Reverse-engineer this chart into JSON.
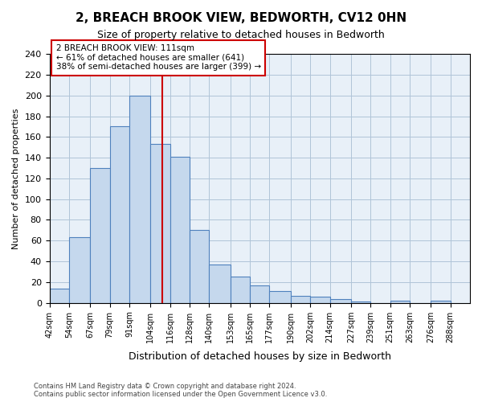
{
  "title": "2, BREACH BROOK VIEW, BEDWORTH, CV12 0HN",
  "subtitle": "Size of property relative to detached houses in Bedworth",
  "xlabel": "Distribution of detached houses by size in Bedworth",
  "ylabel": "Number of detached properties",
  "bin_labels": [
    "42sqm",
    "54sqm",
    "67sqm",
    "79sqm",
    "91sqm",
    "104sqm",
    "116sqm",
    "128sqm",
    "140sqm",
    "153sqm",
    "165sqm",
    "177sqm",
    "190sqm",
    "202sqm",
    "214sqm",
    "227sqm",
    "239sqm",
    "251sqm",
    "263sqm",
    "276sqm",
    "288sqm"
  ],
  "bin_edges": [
    42,
    54,
    67,
    79,
    91,
    104,
    116,
    128,
    140,
    153,
    165,
    177,
    190,
    202,
    214,
    227,
    239,
    251,
    263,
    276,
    288
  ],
  "bar_heights": [
    14,
    63,
    130,
    170,
    200,
    153,
    141,
    70,
    37,
    25,
    17,
    11,
    7,
    6,
    4,
    1,
    0,
    2,
    0,
    2
  ],
  "bar_color": "#c5d8ed",
  "bar_edge_color": "#4f81bd",
  "property_size": 111,
  "vline_color": "#cc0000",
  "annotation_text": "2 BREACH BROOK VIEW: 111sqm\n← 61% of detached houses are smaller (641)\n38% of semi-detached houses are larger (399) →",
  "annotation_box_color": "#ffffff",
  "annotation_box_edge_color": "#cc0000",
  "ylim": [
    0,
    240
  ],
  "yticks": [
    0,
    20,
    40,
    60,
    80,
    100,
    120,
    140,
    160,
    180,
    200,
    220,
    240
  ],
  "grid_color": "#b0c4d8",
  "background_color": "#e8f0f8",
  "footnote": "Contains HM Land Registry data © Crown copyright and database right 2024.\nContains public sector information licensed under the Open Government Licence v3.0."
}
